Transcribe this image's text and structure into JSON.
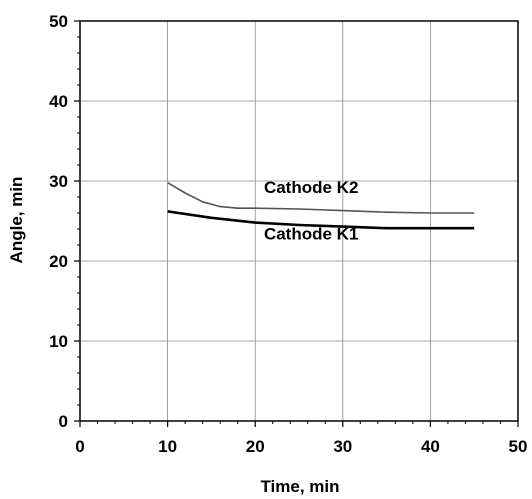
{
  "chart_data": {
    "type": "line",
    "title": "",
    "xlabel": "Time, min",
    "ylabel": "Angle, min",
    "xlim": [
      0,
      50
    ],
    "ylim": [
      0,
      50
    ],
    "x_ticks": [
      "0",
      "10",
      "20",
      "30",
      "40",
      "50"
    ],
    "y_ticks": [
      "0",
      "10",
      "20",
      "30",
      "40",
      "50"
    ],
    "grid": true,
    "legend": "none",
    "series": [
      {
        "name": "Cathode K2",
        "color": "#555555",
        "x": [
          10,
          12,
          14,
          16,
          18,
          20,
          25,
          30,
          35,
          40,
          45
        ],
        "y": [
          29.8,
          28.5,
          27.4,
          26.8,
          26.6,
          26.6,
          26.5,
          26.3,
          26.1,
          26.0,
          26.0
        ]
      },
      {
        "name": "Cathode K1",
        "color": "#000000",
        "x": [
          10,
          15,
          20,
          25,
          30,
          35,
          40,
          45
        ],
        "y": [
          26.2,
          25.4,
          24.8,
          24.5,
          24.3,
          24.1,
          24.1,
          24.1
        ]
      }
    ],
    "annotations": [
      {
        "text": "Cathode K2",
        "x": 21,
        "y": 28.5
      },
      {
        "text": "Cathode K1",
        "x": 21,
        "y": 22.7
      }
    ]
  }
}
